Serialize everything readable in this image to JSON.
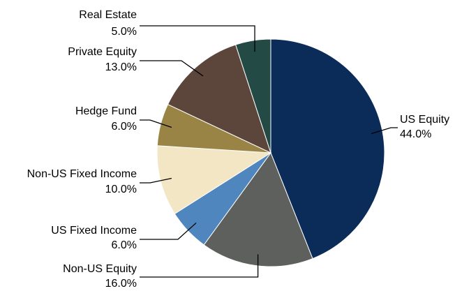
{
  "chart_data": {
    "type": "pie",
    "categories": [
      "US Equity",
      "Non-US Equity",
      "US Fixed Income",
      "Non-US Fixed Income",
      "Hedge Fund",
      "Private Equity",
      "Real Estate"
    ],
    "values": [
      44,
      16,
      6,
      10,
      6,
      13,
      5
    ],
    "value_labels": [
      "44.0%",
      "16.0%",
      "6.0%",
      "10.0%",
      "6.0%",
      "13.0%",
      "5.0%"
    ],
    "colors": [
      "#0b2c59",
      "#5e605d",
      "#4e86bd",
      "#f3e6c4",
      "#9a8445",
      "#5c463c",
      "#244a46"
    ]
  }
}
